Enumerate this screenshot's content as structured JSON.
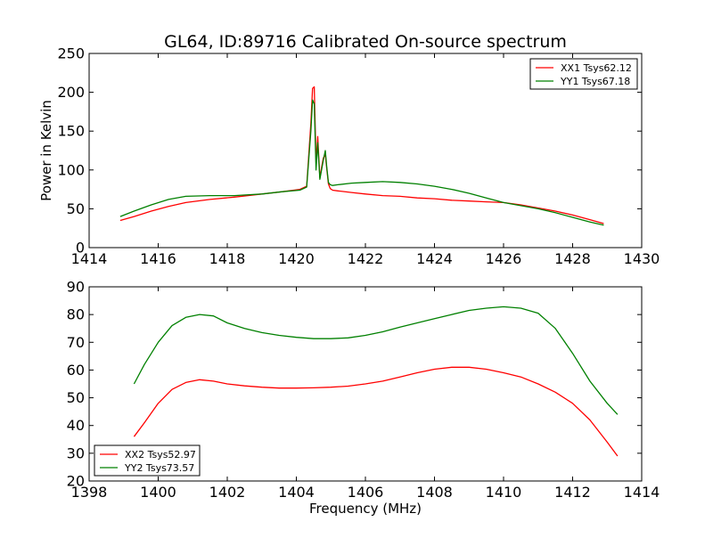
{
  "title": "GL64, ID:89716 Calibrated On-source spectrum",
  "colors": {
    "red": "#ff0000",
    "green": "#008000",
    "axes": "#000000"
  },
  "chart_data": [
    {
      "type": "line",
      "title": "GL64, ID:89716 Calibrated On-source spectrum",
      "xlabel": "",
      "ylabel": "Power in Kelvin",
      "xlim": [
        1414,
        1430
      ],
      "ylim": [
        0,
        250
      ],
      "xticks": [
        1414,
        1416,
        1418,
        1420,
        1422,
        1424,
        1426,
        1428,
        1430
      ],
      "yticks": [
        0,
        50,
        100,
        150,
        200,
        250
      ],
      "grid": false,
      "legend_position": "top-right",
      "series": [
        {
          "name": "XX1 Tsys62.12",
          "color": "#ff0000",
          "x": [
            1414.9,
            1415.3,
            1415.8,
            1416.3,
            1416.8,
            1417.5,
            1418.2,
            1419.0,
            1419.6,
            1420.1,
            1420.3,
            1420.42,
            1420.47,
            1420.52,
            1420.57,
            1420.62,
            1420.68,
            1420.73,
            1420.78,
            1420.84,
            1420.88,
            1420.93,
            1420.98,
            1421.05,
            1421.2,
            1421.6,
            1422.0,
            1422.5,
            1423.0,
            1423.5,
            1424.0,
            1424.5,
            1425.0,
            1425.5,
            1426.0,
            1426.5,
            1427.0,
            1427.5,
            1428.0,
            1428.5,
            1428.9
          ],
          "y": [
            35,
            40,
            47,
            53,
            58,
            62,
            65,
            69,
            72,
            75,
            79,
            160,
            205,
            207,
            110,
            143,
            90,
            103,
            115,
            120,
            102,
            82,
            76,
            74,
            73,
            71,
            69,
            67,
            66,
            64,
            63,
            61,
            60,
            59,
            58,
            55,
            51,
            47,
            42,
            36,
            31
          ]
        },
        {
          "name": "YY1 Tsys67.18",
          "color": "#008000",
          "x": [
            1414.9,
            1415.3,
            1415.8,
            1416.3,
            1416.8,
            1417.5,
            1418.2,
            1419.0,
            1419.6,
            1420.1,
            1420.3,
            1420.42,
            1420.47,
            1420.52,
            1420.57,
            1420.62,
            1420.68,
            1420.73,
            1420.78,
            1420.84,
            1420.88,
            1420.93,
            1420.98,
            1421.05,
            1421.2,
            1421.6,
            1422.0,
            1422.5,
            1423.0,
            1423.5,
            1424.0,
            1424.5,
            1425.0,
            1425.5,
            1426.0,
            1426.5,
            1427.0,
            1427.5,
            1428.0,
            1428.5,
            1428.9
          ],
          "y": [
            40,
            47,
            55,
            62,
            66,
            67,
            67,
            69,
            72,
            74,
            78,
            150,
            190,
            185,
            100,
            135,
            88,
            100,
            112,
            125,
            104,
            84,
            81,
            80,
            81,
            83,
            84,
            85,
            84,
            82,
            79,
            75,
            70,
            64,
            58,
            54,
            50,
            45,
            39,
            33,
            29
          ]
        }
      ]
    },
    {
      "type": "line",
      "title": "",
      "xlabel": "Frequency (MHz)",
      "ylabel": "",
      "xlim": [
        1398,
        1414
      ],
      "ylim": [
        20,
        90
      ],
      "xticks": [
        1398,
        1400,
        1402,
        1404,
        1406,
        1408,
        1410,
        1412,
        1414
      ],
      "yticks": [
        20,
        30,
        40,
        50,
        60,
        70,
        80,
        90
      ],
      "grid": false,
      "legend_position": "bottom-left",
      "series": [
        {
          "name": "XX2 Tsys52.97",
          "color": "#ff0000",
          "x": [
            1399.3,
            1399.6,
            1400.0,
            1400.4,
            1400.8,
            1401.2,
            1401.6,
            1402.0,
            1402.5,
            1403.0,
            1403.5,
            1404.0,
            1404.5,
            1405.0,
            1405.5,
            1406.0,
            1406.5,
            1407.0,
            1407.5,
            1408.0,
            1408.5,
            1409.0,
            1409.5,
            1410.0,
            1410.5,
            1411.0,
            1411.5,
            1412.0,
            1412.5,
            1413.0,
            1413.3
          ],
          "y": [
            36,
            41,
            48,
            53,
            55.5,
            56.5,
            56,
            55,
            54.3,
            53.8,
            53.5,
            53.5,
            53.6,
            53.8,
            54.2,
            55,
            56,
            57.5,
            59,
            60.3,
            61,
            61,
            60.3,
            59,
            57.5,
            55,
            52,
            48,
            42,
            34,
            29
          ]
        },
        {
          "name": "YY2 Tsys73.57",
          "color": "#008000",
          "x": [
            1399.3,
            1399.6,
            1400.0,
            1400.4,
            1400.8,
            1401.2,
            1401.6,
            1402.0,
            1402.5,
            1403.0,
            1403.5,
            1404.0,
            1404.5,
            1405.0,
            1405.5,
            1406.0,
            1406.5,
            1407.0,
            1407.5,
            1408.0,
            1408.5,
            1409.0,
            1409.5,
            1410.0,
            1410.5,
            1411.0,
            1411.5,
            1412.0,
            1412.5,
            1413.0,
            1413.3
          ],
          "y": [
            55,
            62,
            70,
            76,
            79,
            80,
            79.5,
            77,
            75,
            73.5,
            72.5,
            71.8,
            71.3,
            71.3,
            71.6,
            72.5,
            73.8,
            75.5,
            77,
            78.5,
            80,
            81.5,
            82.3,
            82.8,
            82.3,
            80.5,
            75,
            66,
            56,
            48,
            44
          ]
        }
      ]
    }
  ]
}
